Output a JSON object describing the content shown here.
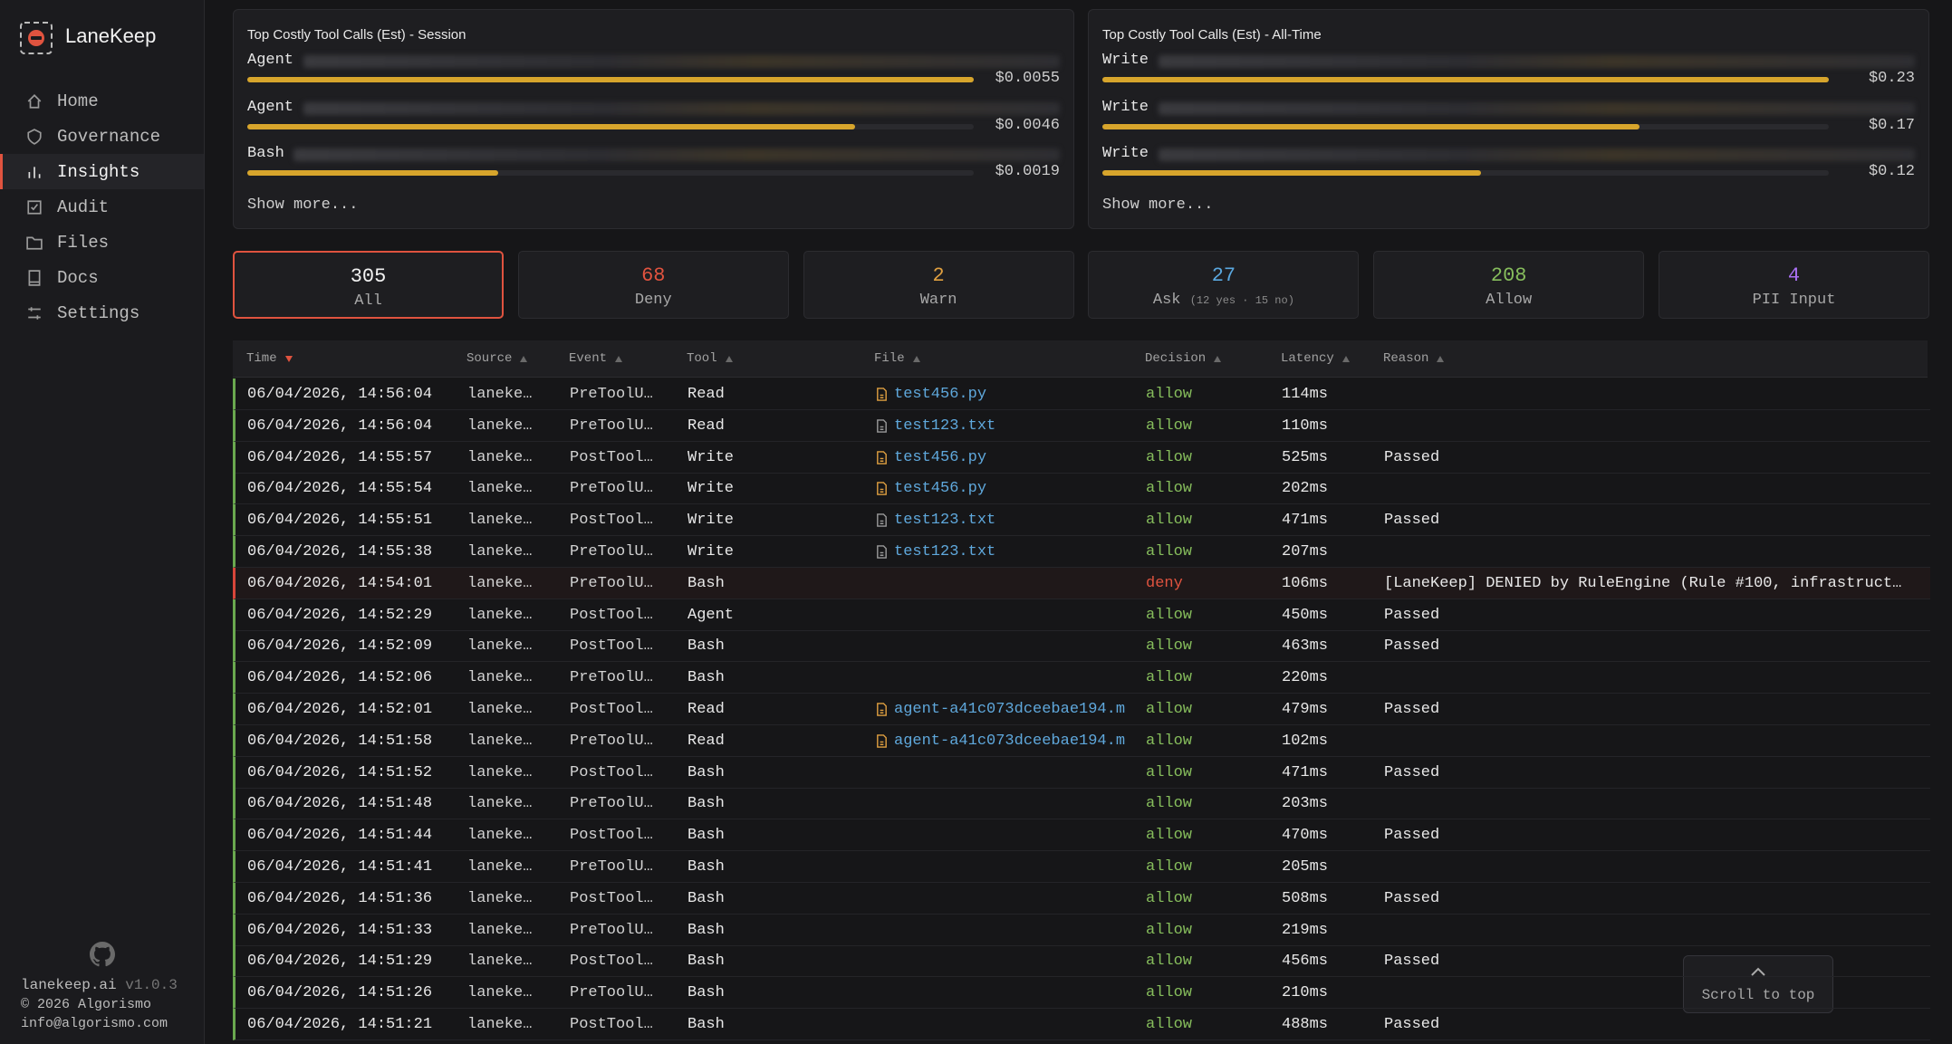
{
  "sidebar": {
    "brand": "LaneKeep",
    "nav": [
      {
        "label": "Home"
      },
      {
        "label": "Governance"
      },
      {
        "label": "Insights",
        "active": true
      },
      {
        "label": "Audit"
      },
      {
        "label": "Files"
      },
      {
        "label": "Docs"
      },
      {
        "label": "Settings"
      }
    ],
    "footer": {
      "site": "lanekeep.ai",
      "version": "v1.0.3",
      "copyright": "© 2026 Algorismo",
      "email": "info@algorismo.com"
    }
  },
  "cost_cards": [
    {
      "title": "Top Costly Tool Calls (Est) - Session",
      "items": [
        {
          "tool": "Agent",
          "value": 0.0055,
          "value_label": "$0.0055"
        },
        {
          "tool": "Agent",
          "value": 0.0046,
          "value_label": "$0.0046"
        },
        {
          "tool": "Bash",
          "value": 0.0019,
          "value_label": "$0.0019"
        }
      ],
      "more": "Show more..."
    },
    {
      "title": "Top Costly Tool Calls (Est) - All-Time",
      "items": [
        {
          "tool": "Write",
          "value": 0.23,
          "value_label": "$0.23"
        },
        {
          "tool": "Write",
          "value": 0.17,
          "value_label": "$0.17"
        },
        {
          "tool": "Write",
          "value": 0.12,
          "value_label": "$0.12"
        }
      ],
      "more": "Show more..."
    }
  ],
  "stats": [
    {
      "value": 305,
      "label": "All",
      "color": "#f2f2f2",
      "selected": true
    },
    {
      "value": 68,
      "label": "Deny",
      "color": "#e0533f"
    },
    {
      "value": 2,
      "label": "Warn",
      "color": "#e0a040"
    },
    {
      "value": 27,
      "label": "Ask",
      "detail": "(12 yes · 15 no)",
      "color": "#5aa8e0"
    },
    {
      "value": 208,
      "label": "Allow",
      "color": "#86bd5c"
    },
    {
      "value": 4,
      "label": "PII Input",
      "color": "#a970f2"
    }
  ],
  "table": {
    "columns": [
      {
        "label": "Time",
        "sort": "desc"
      },
      {
        "label": "Source",
        "sort": "asc"
      },
      {
        "label": "Event",
        "sort": "asc"
      },
      {
        "label": "Tool",
        "sort": "asc"
      },
      {
        "label": "File",
        "sort": "asc"
      },
      {
        "label": "Decision",
        "sort": "asc"
      },
      {
        "label": "Latency",
        "sort": "asc"
      },
      {
        "label": "Reason",
        "sort": "asc"
      }
    ],
    "rows": [
      {
        "time": "06/04/2026, 14:56:04",
        "source": "laneke…",
        "event": "PreToolU…",
        "tool": "Read",
        "file": "test456.py",
        "decision": "allow",
        "latency": "114ms"
      },
      {
        "time": "06/04/2026, 14:56:04",
        "source": "laneke…",
        "event": "PreToolU…",
        "tool": "Read",
        "file": "test123.txt",
        "decision": "allow",
        "latency": "110ms"
      },
      {
        "time": "06/04/2026, 14:55:57",
        "source": "laneke…",
        "event": "PostTool…",
        "tool": "Write",
        "file": "test456.py",
        "decision": "allow",
        "latency": "525ms",
        "reason": "Passed"
      },
      {
        "time": "06/04/2026, 14:55:54",
        "source": "laneke…",
        "event": "PreToolU…",
        "tool": "Write",
        "file": "test456.py",
        "decision": "allow",
        "latency": "202ms"
      },
      {
        "time": "06/04/2026, 14:55:51",
        "source": "laneke…",
        "event": "PostTool…",
        "tool": "Write",
        "file": "test123.txt",
        "decision": "allow",
        "latency": "471ms",
        "reason": "Passed"
      },
      {
        "time": "06/04/2026, 14:55:38",
        "source": "laneke…",
        "event": "PreToolU…",
        "tool": "Write",
        "file": "test123.txt",
        "decision": "allow",
        "latency": "207ms"
      },
      {
        "time": "06/04/2026, 14:54:01",
        "source": "laneke…",
        "event": "PreToolU…",
        "tool": "Bash",
        "decision": "deny",
        "latency": "106ms",
        "reason": "[LaneKeep] DENIED by RuleEngine (Rule #100, infrastruct…"
      },
      {
        "time": "06/04/2026, 14:52:29",
        "source": "laneke…",
        "event": "PostTool…",
        "tool": "Agent",
        "decision": "allow",
        "latency": "450ms",
        "reason": "Passed"
      },
      {
        "time": "06/04/2026, 14:52:09",
        "source": "laneke…",
        "event": "PostTool…",
        "tool": "Bash",
        "decision": "allow",
        "latency": "463ms",
        "reason": "Passed"
      },
      {
        "time": "06/04/2026, 14:52:06",
        "source": "laneke…",
        "event": "PreToolU…",
        "tool": "Bash",
        "decision": "allow",
        "latency": "220ms"
      },
      {
        "time": "06/04/2026, 14:52:01",
        "source": "laneke…",
        "event": "PostTool…",
        "tool": "Read",
        "file": "agent-a41c073dceebae194.m",
        "decision": "allow",
        "latency": "479ms",
        "reason": "Passed"
      },
      {
        "time": "06/04/2026, 14:51:58",
        "source": "laneke…",
        "event": "PreToolU…",
        "tool": "Read",
        "file": "agent-a41c073dceebae194.m",
        "decision": "allow",
        "latency": "102ms"
      },
      {
        "time": "06/04/2026, 14:51:52",
        "source": "laneke…",
        "event": "PostTool…",
        "tool": "Bash",
        "decision": "allow",
        "latency": "471ms",
        "reason": "Passed"
      },
      {
        "time": "06/04/2026, 14:51:48",
        "source": "laneke…",
        "event": "PreToolU…",
        "tool": "Bash",
        "decision": "allow",
        "latency": "203ms"
      },
      {
        "time": "06/04/2026, 14:51:44",
        "source": "laneke…",
        "event": "PostTool…",
        "tool": "Bash",
        "decision": "allow",
        "latency": "470ms",
        "reason": "Passed"
      },
      {
        "time": "06/04/2026, 14:51:41",
        "source": "laneke…",
        "event": "PreToolU…",
        "tool": "Bash",
        "decision": "allow",
        "latency": "205ms"
      },
      {
        "time": "06/04/2026, 14:51:36",
        "source": "laneke…",
        "event": "PostTool…",
        "tool": "Bash",
        "decision": "allow",
        "latency": "508ms",
        "reason": "Passed"
      },
      {
        "time": "06/04/2026, 14:51:33",
        "source": "laneke…",
        "event": "PreToolU…",
        "tool": "Bash",
        "decision": "allow",
        "latency": "219ms"
      },
      {
        "time": "06/04/2026, 14:51:29",
        "source": "laneke…",
        "event": "PostTool…",
        "tool": "Bash",
        "decision": "allow",
        "latency": "456ms",
        "reason": "Passed"
      },
      {
        "time": "06/04/2026, 14:51:26",
        "source": "laneke…",
        "event": "PreToolU…",
        "tool": "Bash",
        "decision": "allow",
        "latency": "210ms"
      },
      {
        "time": "06/04/2026, 14:51:21",
        "source": "laneke…",
        "event": "PostTool…",
        "tool": "Bash",
        "decision": "allow",
        "latency": "488ms",
        "reason": "Passed"
      }
    ]
  },
  "scroll_top": "Scroll to top"
}
